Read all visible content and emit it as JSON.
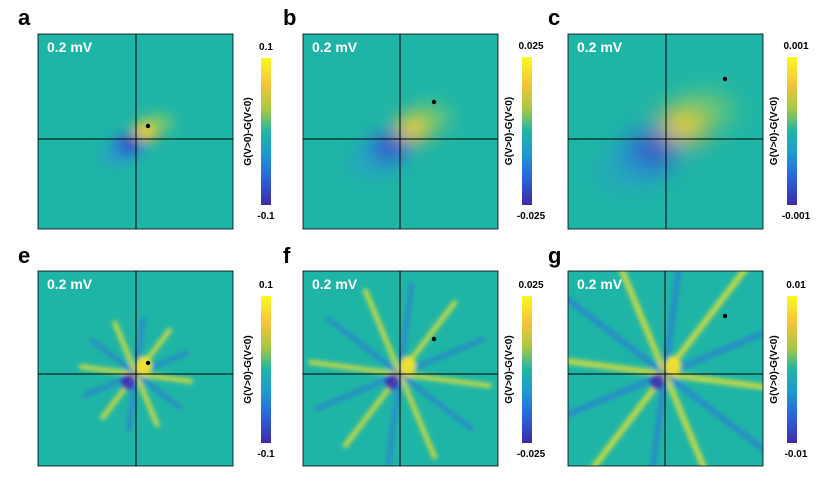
{
  "figure": {
    "colorbar_label": "G(V>0)-G(V<0)",
    "panels": [
      {
        "letter": "a",
        "energy": "0.2 mV",
        "cbar_max": "0.1",
        "cbar_min": "-0.1",
        "style": "dipole"
      },
      {
        "letter": "b",
        "energy": "0.2 mV",
        "cbar_max": "0.025",
        "cbar_min": "-0.025",
        "style": "dipole"
      },
      {
        "letter": "c",
        "energy": "0.2 mV",
        "cbar_max": "0.001",
        "cbar_min": "-0.001",
        "style": "dipole"
      },
      {
        "letter": "e",
        "energy": "0.2 mV",
        "cbar_max": "0.1",
        "cbar_min": "-0.1",
        "style": "rays"
      },
      {
        "letter": "f",
        "energy": "0.2 mV",
        "cbar_max": "0.025",
        "cbar_min": "-0.025",
        "style": "rays"
      },
      {
        "letter": "g",
        "energy": "0.2 mV",
        "cbar_max": "0.01",
        "cbar_min": "-0.01",
        "style": "rays"
      }
    ],
    "colors": {
      "background": "#1fb5a6",
      "positive": "#f9e328",
      "positive_mid": "#f6a93a",
      "negative": "#3b2bb8",
      "negative_mid": "#2c72dc",
      "text_on_map": "#ffffff",
      "crosshair": "#000000"
    }
  }
}
